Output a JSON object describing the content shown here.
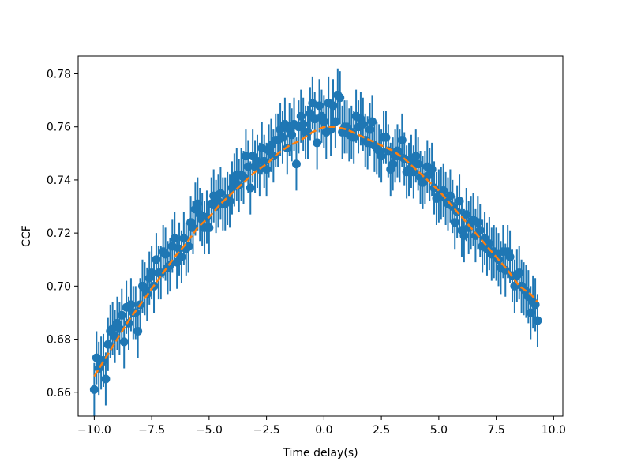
{
  "chart_data": {
    "type": "scatter",
    "title": "",
    "xlabel": "Time delay(s)",
    "ylabel": "CCF",
    "xlim": [
      -10.7,
      10.4
    ],
    "ylim": [
      0.651,
      0.7867
    ],
    "x_ticks": [
      -10.0,
      -7.5,
      -5.0,
      -2.5,
      0.0,
      2.5,
      5.0,
      7.5,
      10.0
    ],
    "x_tick_labels": [
      "−10.0",
      "−7.5",
      "−5.0",
      "−2.5",
      "0.0",
      "2.5",
      "5.0",
      "7.5",
      "10.0"
    ],
    "y_ticks": [
      0.66,
      0.68,
      0.7,
      0.72,
      0.74,
      0.76,
      0.78
    ],
    "y_tick_labels": [
      "0.66",
      "0.68",
      "0.70",
      "0.72",
      "0.74",
      "0.76",
      "0.78"
    ],
    "grid": false,
    "legend": "none",
    "colors": {
      "points": "#1f77b4",
      "fit": "#ff7f0e"
    },
    "series": [
      {
        "kind": "errorbar-points",
        "error": 0.01,
        "x": [
          -10.0,
          -9.9,
          -9.8,
          -9.7,
          -9.6,
          -9.5,
          -9.4,
          -9.3,
          -9.2,
          -9.1,
          -9.0,
          -8.9,
          -8.8,
          -8.7,
          -8.6,
          -8.5,
          -8.4,
          -8.3,
          -8.2,
          -8.1,
          -8.0,
          -7.9,
          -7.8,
          -7.7,
          -7.6,
          -7.5,
          -7.4,
          -7.3,
          -7.2,
          -7.1,
          -7.0,
          -6.9,
          -6.8,
          -6.7,
          -6.6,
          -6.5,
          -6.4,
          -6.3,
          -6.2,
          -6.1,
          -6.0,
          -5.9,
          -5.8,
          -5.7,
          -5.6,
          -5.5,
          -5.4,
          -5.3,
          -5.2,
          -5.1,
          -5.0,
          -4.9,
          -4.8,
          -4.7,
          -4.6,
          -4.5,
          -4.4,
          -4.3,
          -4.2,
          -4.1,
          -4.0,
          -3.9,
          -3.8,
          -3.7,
          -3.6,
          -3.5,
          -3.4,
          -3.3,
          -3.2,
          -3.1,
          -3.0,
          -2.9,
          -2.8,
          -2.7,
          -2.6,
          -2.5,
          -2.4,
          -2.3,
          -2.2,
          -2.1,
          -2.0,
          -1.9,
          -1.8,
          -1.7,
          -1.6,
          -1.5,
          -1.4,
          -1.3,
          -1.2,
          -1.1,
          -1.0,
          -0.9,
          -0.8,
          -0.7,
          -0.6,
          -0.5,
          -0.4,
          -0.3,
          -0.2,
          -0.1,
          0.0,
          0.1,
          0.2,
          0.3,
          0.4,
          0.5,
          0.6,
          0.7,
          0.8,
          0.9,
          1.0,
          1.1,
          1.2,
          1.3,
          1.4,
          1.5,
          1.6,
          1.7,
          1.8,
          1.9,
          2.0,
          2.1,
          2.2,
          2.3,
          2.4,
          2.5,
          2.6,
          2.7,
          2.8,
          2.9,
          3.0,
          3.1,
          3.2,
          3.3,
          3.4,
          3.5,
          3.6,
          3.7,
          3.8,
          3.9,
          4.0,
          4.1,
          4.2,
          4.3,
          4.4,
          4.5,
          4.6,
          4.7,
          4.8,
          4.9,
          5.0,
          5.1,
          5.2,
          5.3,
          5.4,
          5.5,
          5.6,
          5.7,
          5.8,
          5.9,
          6.0,
          6.1,
          6.2,
          6.3,
          6.4,
          6.5,
          6.6,
          6.7,
          6.8,
          6.9,
          7.0,
          7.1,
          7.2,
          7.3,
          7.4,
          7.5,
          7.6,
          7.7,
          7.8,
          7.9,
          8.0,
          8.1,
          8.2,
          8.3,
          8.4,
          8.5,
          8.6,
          8.7,
          8.8,
          8.9,
          9.0,
          9.1,
          9.2,
          9.3
        ],
        "y": [
          0.661,
          0.673,
          0.669,
          0.671,
          0.672,
          0.665,
          0.678,
          0.683,
          0.684,
          0.681,
          0.686,
          0.684,
          0.689,
          0.679,
          0.692,
          0.686,
          0.693,
          0.69,
          0.69,
          0.683,
          0.693,
          0.7,
          0.699,
          0.697,
          0.703,
          0.705,
          0.7,
          0.71,
          0.705,
          0.705,
          0.713,
          0.712,
          0.707,
          0.708,
          0.715,
          0.718,
          0.709,
          0.714,
          0.711,
          0.718,
          0.714,
          0.715,
          0.724,
          0.722,
          0.729,
          0.731,
          0.727,
          0.725,
          0.722,
          0.726,
          0.722,
          0.731,
          0.734,
          0.73,
          0.732,
          0.735,
          0.731,
          0.731,
          0.733,
          0.732,
          0.737,
          0.74,
          0.742,
          0.738,
          0.742,
          0.741,
          0.749,
          0.745,
          0.737,
          0.749,
          0.745,
          0.747,
          0.744,
          0.752,
          0.747,
          0.744,
          0.751,
          0.753,
          0.749,
          0.755,
          0.755,
          0.759,
          0.756,
          0.761,
          0.752,
          0.759,
          0.757,
          0.761,
          0.746,
          0.76,
          0.764,
          0.761,
          0.758,
          0.758,
          0.765,
          0.769,
          0.763,
          0.754,
          0.768,
          0.764,
          0.762,
          0.758,
          0.769,
          0.759,
          0.768,
          0.762,
          0.772,
          0.771,
          0.758,
          0.76,
          0.76,
          0.757,
          0.758,
          0.756,
          0.764,
          0.76,
          0.763,
          0.761,
          0.755,
          0.754,
          0.759,
          0.762,
          0.753,
          0.752,
          0.751,
          0.749,
          0.756,
          0.756,
          0.751,
          0.744,
          0.746,
          0.749,
          0.751,
          0.749,
          0.755,
          0.748,
          0.743,
          0.744,
          0.747,
          0.743,
          0.749,
          0.746,
          0.741,
          0.739,
          0.741,
          0.745,
          0.742,
          0.744,
          0.737,
          0.733,
          0.734,
          0.735,
          0.736,
          0.733,
          0.731,
          0.734,
          0.73,
          0.724,
          0.728,
          0.732,
          0.721,
          0.719,
          0.727,
          0.722,
          0.724,
          0.725,
          0.719,
          0.724,
          0.721,
          0.715,
          0.718,
          0.714,
          0.716,
          0.712,
          0.713,
          0.712,
          0.71,
          0.707,
          0.713,
          0.706,
          0.713,
          0.711,
          0.704,
          0.7,
          0.704,
          0.705,
          0.7,
          0.699,
          0.698,
          0.696,
          0.69,
          0.694,
          0.693,
          0.687
        ]
      },
      {
        "kind": "dashed-fit",
        "x": [
          -10.0,
          -9.5,
          -9.0,
          -8.5,
          -8.0,
          -7.5,
          -7.0,
          -6.5,
          -6.0,
          -5.5,
          -5.0,
          -4.5,
          -4.0,
          -3.5,
          -3.0,
          -2.5,
          -2.0,
          -1.5,
          -1.0,
          -0.5,
          0.0,
          0.5,
          1.0,
          1.5,
          2.0,
          2.5,
          3.0,
          3.5,
          4.0,
          4.5,
          5.0,
          5.5,
          6.0,
          6.5,
          7.0,
          7.5,
          8.0,
          8.5,
          9.0,
          9.3
        ],
        "y": [
          0.666,
          0.673,
          0.68,
          0.687,
          0.693,
          0.699,
          0.705,
          0.711,
          0.716,
          0.722,
          0.726,
          0.731,
          0.735,
          0.739,
          0.743,
          0.746,
          0.75,
          0.753,
          0.755,
          0.758,
          0.76,
          0.76,
          0.759,
          0.757,
          0.755,
          0.753,
          0.751,
          0.748,
          0.744,
          0.74,
          0.736,
          0.731,
          0.726,
          0.721,
          0.716,
          0.711,
          0.706,
          0.7,
          0.697,
          0.694
        ]
      }
    ]
  }
}
